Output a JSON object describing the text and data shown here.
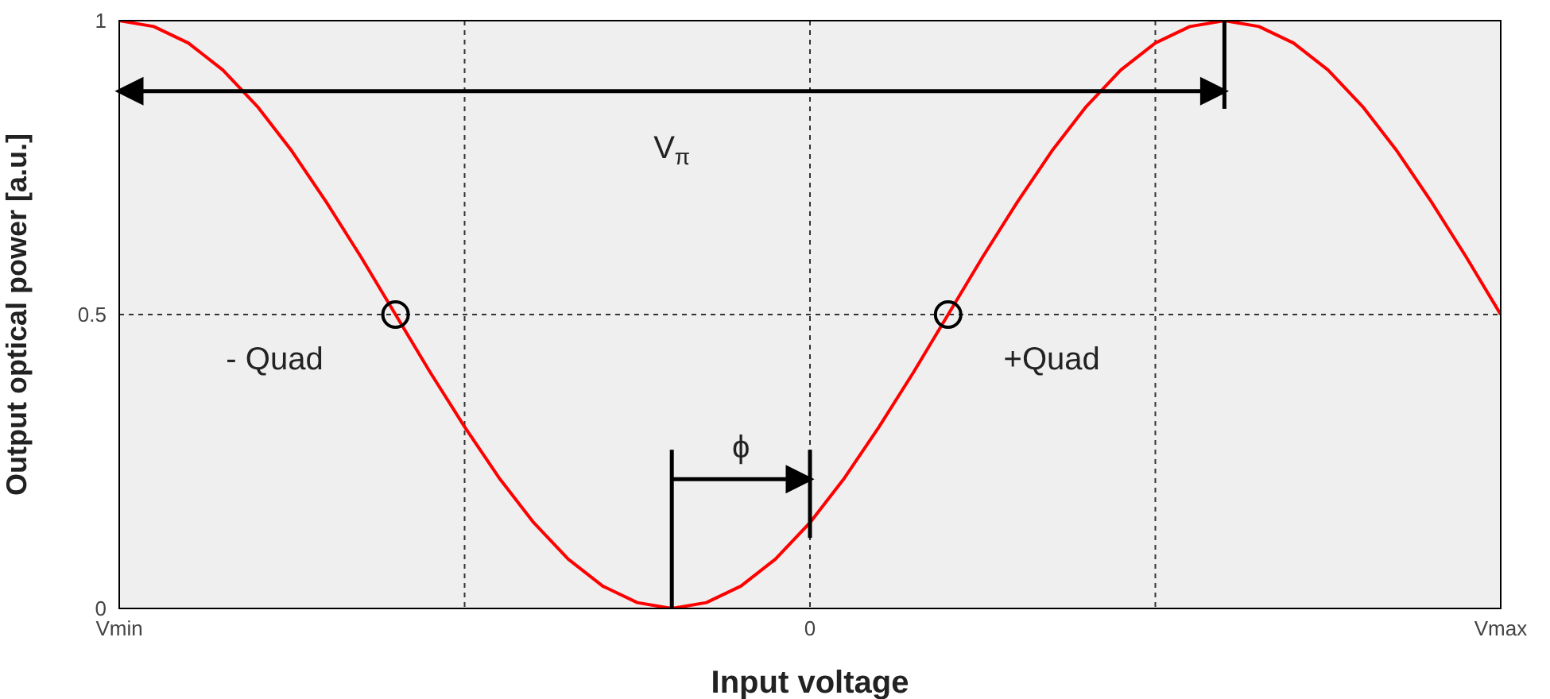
{
  "chart_data": {
    "type": "line",
    "xlabel": "Input voltage",
    "ylabel": "Output optical power [a.u.]",
    "categories": [
      "Vmin",
      null,
      null,
      null,
      null,
      null,
      null,
      null,
      null,
      null,
      null,
      null,
      null,
      null,
      null,
      null,
      null,
      null,
      null,
      null,
      "0",
      null,
      null,
      null,
      null,
      null,
      null,
      null,
      null,
      null,
      null,
      null,
      null,
      null,
      null,
      null,
      null,
      null,
      null,
      null,
      "Vmax"
    ],
    "series": [
      {
        "color": "#ff0000",
        "marker": "none",
        "values": [
          1,
          0.99,
          0.962,
          0.916,
          0.854,
          0.778,
          0.691,
          0.598,
          0.5,
          0.402,
          0.309,
          0.222,
          0.146,
          0.084,
          0.038,
          0.01,
          0,
          0.01,
          0.038,
          0.084,
          0.146,
          0.222,
          0.309,
          0.402,
          0.5,
          0.598,
          0.691,
          0.778,
          0.854,
          0.916,
          0.962,
          0.99,
          1,
          0.99,
          0.962,
          0.916,
          0.854,
          0.778,
          0.691,
          0.598,
          0.5
        ]
      },
      {
        "type": "scatter",
        "color": "#000000",
        "marker": "circle",
        "values": [
          null,
          null,
          null,
          null,
          null,
          null,
          null,
          null,
          0.5,
          null,
          null,
          null,
          null,
          null,
          null,
          null,
          null,
          null,
          null,
          null,
          null,
          null,
          null,
          null,
          0.5,
          null,
          null,
          null,
          null,
          null,
          null,
          null,
          null,
          null,
          null,
          null,
          null,
          null,
          null,
          null,
          null
        ]
      }
    ],
    "ylim": [
      0,
      1
    ],
    "yticks": [
      0,
      0.5,
      1
    ],
    "grid": true,
    "annotations": [
      "V$_{π}$",
      "- Quad",
      "+Quad",
      "ϕ"
    ]
  }
}
